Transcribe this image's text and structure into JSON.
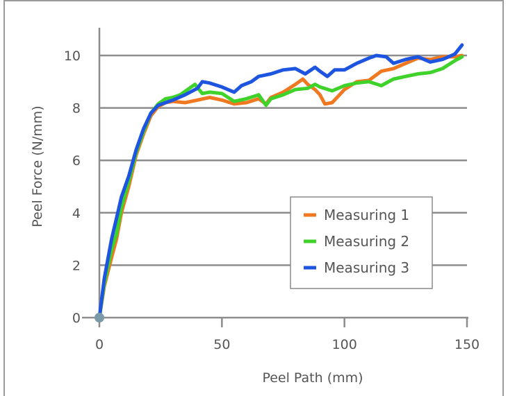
{
  "chart_data": {
    "type": "line",
    "title": "",
    "xlabel": "Peel Path (mm)",
    "ylabel": "Peel Force (N/mm)",
    "xlim": [
      0,
      150
    ],
    "ylim": [
      0,
      10
    ],
    "x_ticks": [
      0,
      50,
      100,
      150
    ],
    "y_ticks": [
      0,
      2,
      4,
      6,
      8,
      10
    ],
    "grid": "horizontal",
    "legend_position": "bottom-right",
    "series": [
      {
        "name": "Measuring 1",
        "color": "#f07820",
        "points": [
          [
            0,
            0
          ],
          [
            2,
            1.2
          ],
          [
            5,
            2.3
          ],
          [
            7,
            3.0
          ],
          [
            9,
            4.0
          ],
          [
            12,
            5.0
          ],
          [
            15,
            6.2
          ],
          [
            18,
            7.0
          ],
          [
            21,
            7.7
          ],
          [
            24,
            8.05
          ],
          [
            27,
            8.2
          ],
          [
            30,
            8.25
          ],
          [
            35,
            8.2
          ],
          [
            40,
            8.3
          ],
          [
            45,
            8.4
          ],
          [
            50,
            8.3
          ],
          [
            55,
            8.15
          ],
          [
            60,
            8.2
          ],
          [
            65,
            8.35
          ],
          [
            68,
            8.15
          ],
          [
            70,
            8.4
          ],
          [
            75,
            8.6
          ],
          [
            80,
            8.9
          ],
          [
            83,
            9.1
          ],
          [
            85,
            8.9
          ],
          [
            88,
            8.7
          ],
          [
            90,
            8.5
          ],
          [
            92,
            8.15
          ],
          [
            95,
            8.2
          ],
          [
            98,
            8.5
          ],
          [
            100,
            8.7
          ],
          [
            105,
            9.0
          ],
          [
            110,
            9.05
          ],
          [
            115,
            9.4
          ],
          [
            120,
            9.5
          ],
          [
            125,
            9.7
          ],
          [
            130,
            9.9
          ],
          [
            135,
            9.85
          ],
          [
            140,
            9.95
          ],
          [
            145,
            9.95
          ],
          [
            148,
            10.0
          ]
        ]
      },
      {
        "name": "Measuring 2",
        "color": "#3fd22a",
        "points": [
          [
            0,
            0
          ],
          [
            2,
            1.3
          ],
          [
            5,
            2.6
          ],
          [
            7,
            3.2
          ],
          [
            9,
            4.2
          ],
          [
            12,
            5.2
          ],
          [
            15,
            6.3
          ],
          [
            18,
            7.1
          ],
          [
            21,
            7.8
          ],
          [
            24,
            8.15
          ],
          [
            27,
            8.35
          ],
          [
            30,
            8.4
          ],
          [
            33,
            8.5
          ],
          [
            36,
            8.7
          ],
          [
            39,
            8.9
          ],
          [
            42,
            8.55
          ],
          [
            45,
            8.6
          ],
          [
            50,
            8.55
          ],
          [
            55,
            8.25
          ],
          [
            60,
            8.35
          ],
          [
            65,
            8.5
          ],
          [
            68,
            8.1
          ],
          [
            70,
            8.35
          ],
          [
            75,
            8.5
          ],
          [
            80,
            8.7
          ],
          [
            85,
            8.75
          ],
          [
            88,
            8.9
          ],
          [
            90,
            8.8
          ],
          [
            95,
            8.65
          ],
          [
            100,
            8.85
          ],
          [
            105,
            8.95
          ],
          [
            110,
            9.0
          ],
          [
            115,
            8.85
          ],
          [
            120,
            9.1
          ],
          [
            125,
            9.2
          ],
          [
            130,
            9.3
          ],
          [
            135,
            9.35
          ],
          [
            140,
            9.5
          ],
          [
            145,
            9.8
          ],
          [
            148,
            9.95
          ]
        ]
      },
      {
        "name": "Measuring 3",
        "color": "#1e55e0",
        "points": [
          [
            0,
            0
          ],
          [
            2,
            1.5
          ],
          [
            5,
            3.0
          ],
          [
            7,
            3.8
          ],
          [
            9,
            4.6
          ],
          [
            12,
            5.4
          ],
          [
            15,
            6.4
          ],
          [
            18,
            7.2
          ],
          [
            21,
            7.8
          ],
          [
            24,
            8.1
          ],
          [
            27,
            8.2
          ],
          [
            30,
            8.3
          ],
          [
            35,
            8.5
          ],
          [
            40,
            8.75
          ],
          [
            42,
            9.0
          ],
          [
            45,
            8.95
          ],
          [
            50,
            8.8
          ],
          [
            55,
            8.6
          ],
          [
            58,
            8.85
          ],
          [
            62,
            9.0
          ],
          [
            65,
            9.2
          ],
          [
            70,
            9.3
          ],
          [
            75,
            9.45
          ],
          [
            80,
            9.5
          ],
          [
            84,
            9.3
          ],
          [
            88,
            9.55
          ],
          [
            90,
            9.4
          ],
          [
            93,
            9.2
          ],
          [
            96,
            9.45
          ],
          [
            100,
            9.45
          ],
          [
            105,
            9.7
          ],
          [
            110,
            9.9
          ],
          [
            113,
            10.0
          ],
          [
            117,
            9.95
          ],
          [
            120,
            9.7
          ],
          [
            125,
            9.85
          ],
          [
            130,
            9.95
          ],
          [
            135,
            9.75
          ],
          [
            140,
            9.85
          ],
          [
            145,
            10.05
          ],
          [
            148,
            10.4
          ]
        ]
      }
    ]
  }
}
